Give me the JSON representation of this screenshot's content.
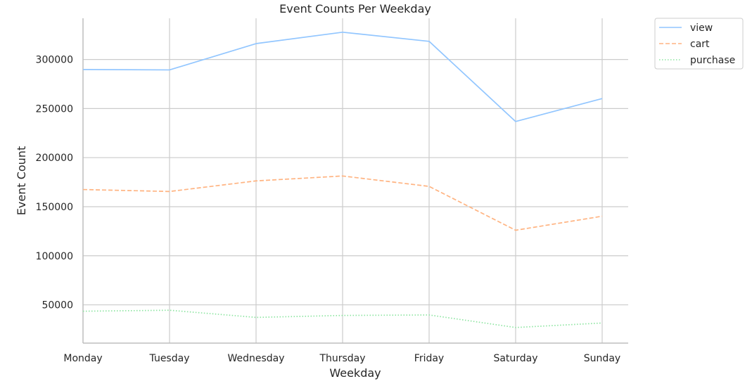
{
  "chart_data": {
    "type": "line",
    "title": "Event Counts Per Weekday",
    "xlabel": "Weekday",
    "ylabel": "Event Count",
    "categories": [
      "Monday",
      "Tuesday",
      "Wednesday",
      "Thursday",
      "Friday",
      "Saturday",
      "Sunday"
    ],
    "ylim": [
      11000,
      342000
    ],
    "yticks": [
      50000,
      100000,
      150000,
      200000,
      250000,
      300000
    ],
    "ytick_labels": [
      "50000",
      "100000",
      "150000",
      "200000",
      "250000",
      "300000"
    ],
    "grid": true,
    "legend_position": "outside top-right",
    "series": [
      {
        "name": "view",
        "color": "#92c6ff",
        "dash": "solid",
        "values": [
          289800,
          289400,
          316200,
          327800,
          318500,
          236800,
          260200
        ]
      },
      {
        "name": "cart",
        "color": "#ffb482",
        "dash": "dashed",
        "values": [
          167500,
          165500,
          176300,
          181300,
          170700,
          126000,
          140300
        ]
      },
      {
        "name": "purchase",
        "color": "#8de5a1",
        "dash": "dotted",
        "values": [
          43500,
          44500,
          37200,
          39200,
          39700,
          26900,
          31500
        ]
      }
    ]
  }
}
